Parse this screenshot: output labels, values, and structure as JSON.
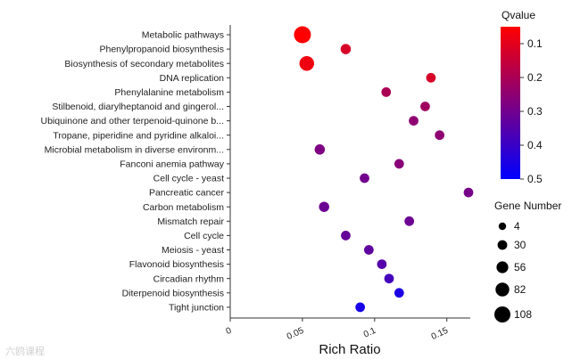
{
  "chart_data": {
    "type": "scatter",
    "title": "",
    "xlabel": "Rich Ratio",
    "ylabel": "",
    "xlim": [
      0,
      0.165
    ],
    "xticks": [
      "0",
      "0.05",
      "0.1",
      "0.15"
    ],
    "grid": false,
    "colorbar": {
      "title": "Qvalue",
      "range": [
        0.05,
        0.5
      ],
      "ticks": [
        "0.1",
        "0.2",
        "0.3",
        "0.4",
        "0.5"
      ],
      "color_low_q": "#ff0000",
      "color_high_q": "#0000ff"
    },
    "size_legend": {
      "title": "Gene Number",
      "values": [
        "4",
        "30",
        "56",
        "82",
        "108"
      ]
    },
    "points": [
      {
        "term": "Metabolic pathways",
        "rich_ratio": 0.05,
        "qvalue": 0.05,
        "gene_number": 108
      },
      {
        "term": "Phenylpropanoid biosynthesis",
        "rich_ratio": 0.08,
        "qvalue": 0.12,
        "gene_number": 30
      },
      {
        "term": "Biosynthesis of secondary metabolites",
        "rich_ratio": 0.053,
        "qvalue": 0.08,
        "gene_number": 82
      },
      {
        "term": "DNA replication",
        "rich_ratio": 0.139,
        "qvalue": 0.12,
        "gene_number": 22
      },
      {
        "term": "Phenylalanine metabolism",
        "rich_ratio": 0.108,
        "qvalue": 0.2,
        "gene_number": 22
      },
      {
        "term": "Stilbenoid, diarylheptanoid and gingerol...",
        "rich_ratio": 0.135,
        "qvalue": 0.22,
        "gene_number": 22
      },
      {
        "term": "Ubiquinone and other terpenoid-quinone b...",
        "rich_ratio": 0.127,
        "qvalue": 0.25,
        "gene_number": 22
      },
      {
        "term": "Tropane, piperidine and pyridine alkaloi...",
        "rich_ratio": 0.145,
        "qvalue": 0.25,
        "gene_number": 22
      },
      {
        "term": "Microbial metabolism in diverse environm...",
        "rich_ratio": 0.062,
        "qvalue": 0.28,
        "gene_number": 30
      },
      {
        "term": "Fanconi anemia pathway",
        "rich_ratio": 0.117,
        "qvalue": 0.26,
        "gene_number": 22
      },
      {
        "term": "Cell cycle - yeast",
        "rich_ratio": 0.093,
        "qvalue": 0.3,
        "gene_number": 22
      },
      {
        "term": "Pancreatic cancer",
        "rich_ratio": 0.165,
        "qvalue": 0.29,
        "gene_number": 22
      },
      {
        "term": "Carbon metabolism",
        "rich_ratio": 0.065,
        "qvalue": 0.31,
        "gene_number": 30
      },
      {
        "term": "Mismatch repair",
        "rich_ratio": 0.124,
        "qvalue": 0.31,
        "gene_number": 22
      },
      {
        "term": "Cell cycle",
        "rich_ratio": 0.08,
        "qvalue": 0.32,
        "gene_number": 22
      },
      {
        "term": "Meiosis - yeast",
        "rich_ratio": 0.096,
        "qvalue": 0.33,
        "gene_number": 22
      },
      {
        "term": "Flavonoid biosynthesis",
        "rich_ratio": 0.105,
        "qvalue": 0.35,
        "gene_number": 22
      },
      {
        "term": "Circadian rhythm",
        "rich_ratio": 0.11,
        "qvalue": 0.38,
        "gene_number": 22
      },
      {
        "term": "Diterpenoid biosynthesis",
        "rich_ratio": 0.117,
        "qvalue": 0.45,
        "gene_number": 22
      },
      {
        "term": "Tight junction",
        "rich_ratio": 0.09,
        "qvalue": 0.46,
        "gene_number": 22
      }
    ]
  },
  "watermark": "六鸥课程"
}
